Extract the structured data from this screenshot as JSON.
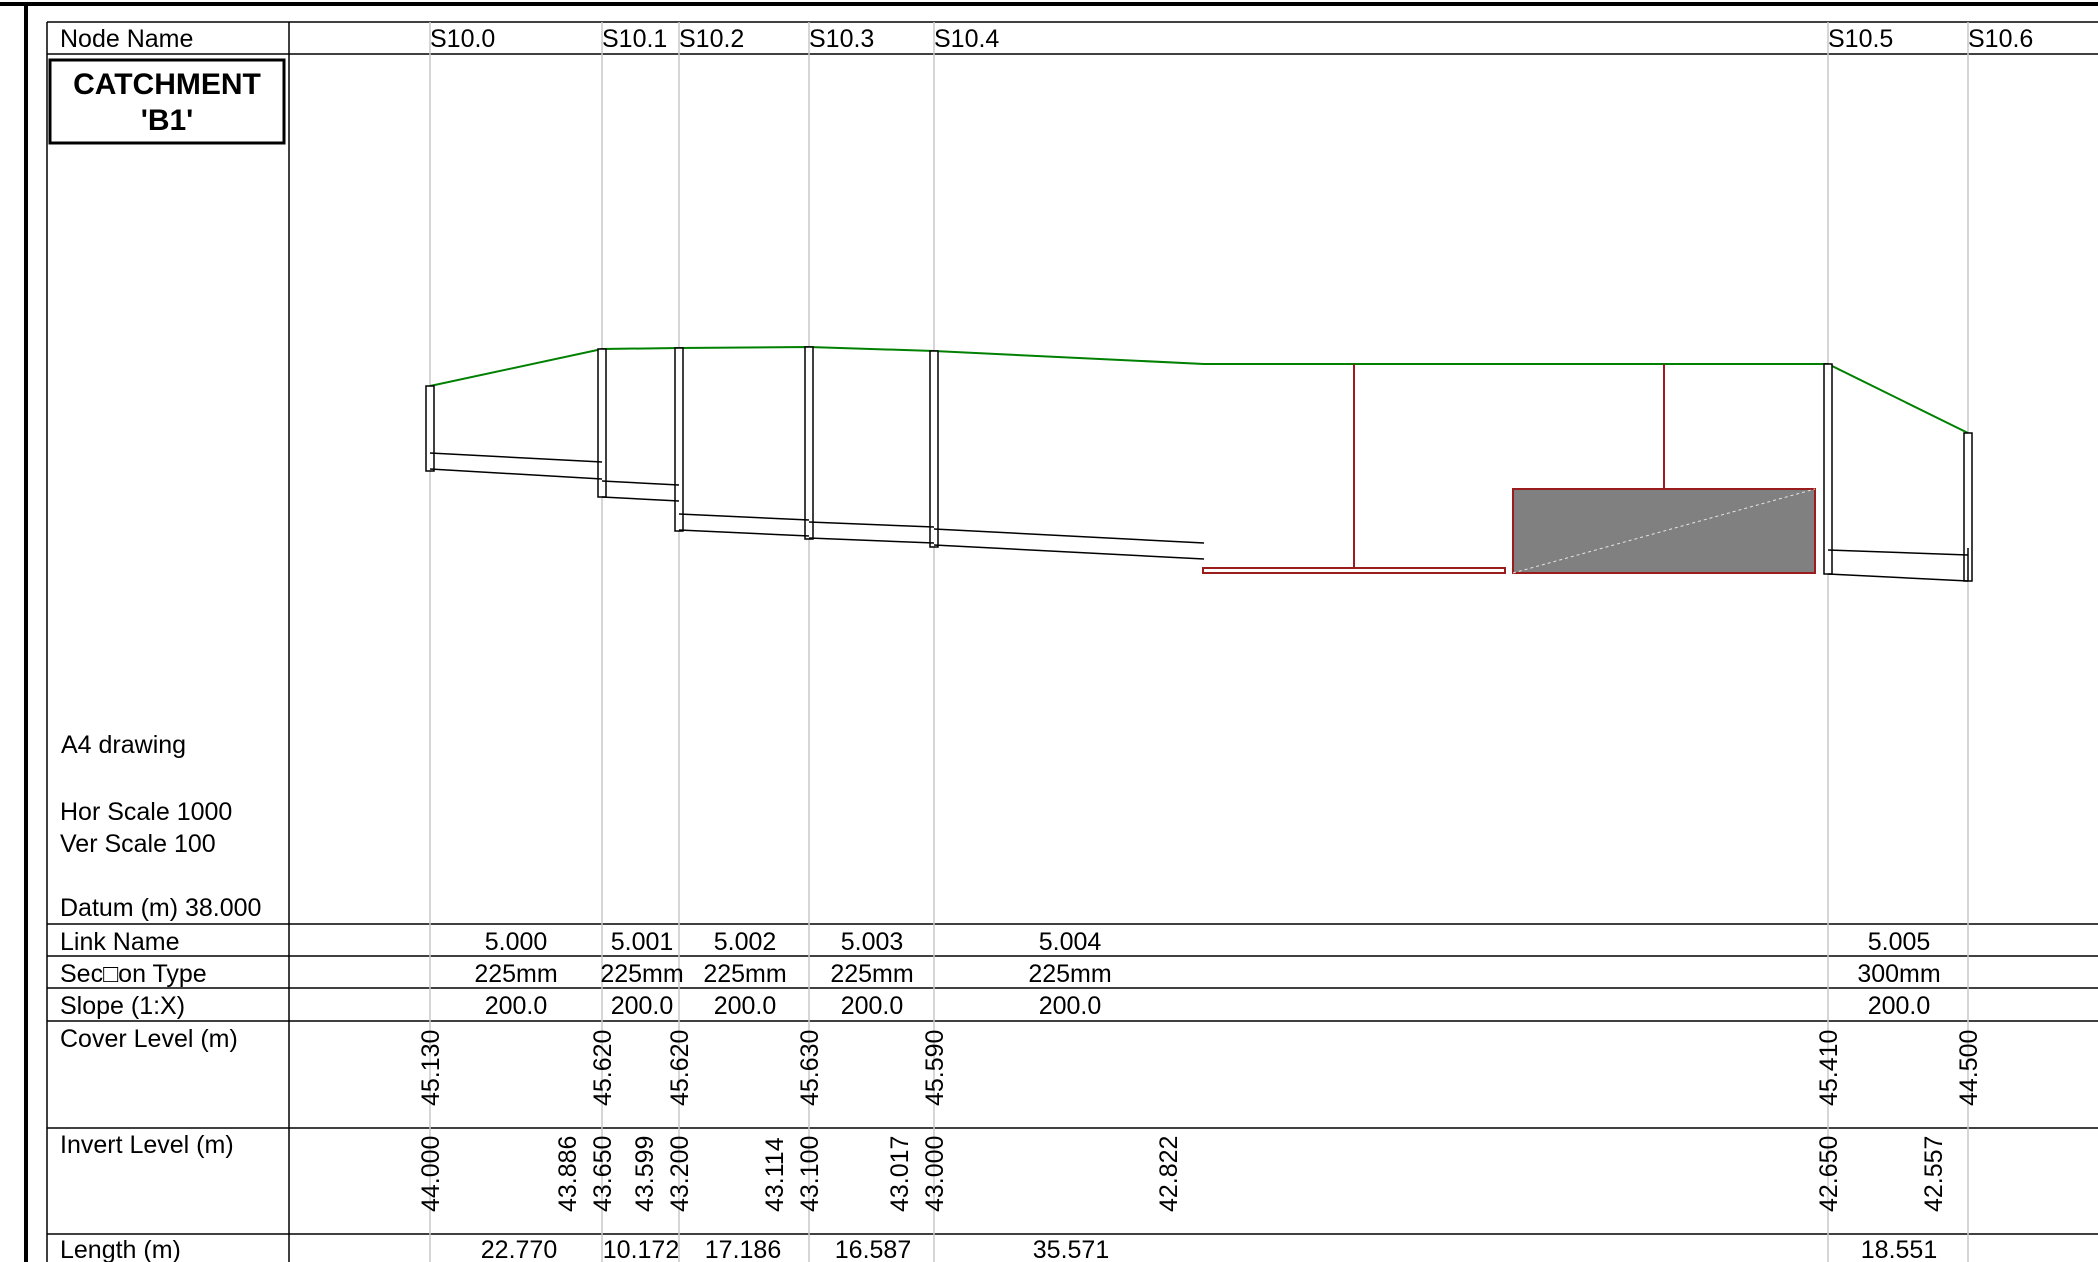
{
  "header_label": "Node Name",
  "title_box": {
    "line1": "CATCHMENT",
    "line2": "'B1'"
  },
  "drawing_info": {
    "paper": "A4 drawing",
    "hor_scale": "Hor Scale 1000",
    "ver_scale": "Ver Scale 100",
    "datum": "Datum (m) 38.000"
  },
  "nodes": [
    "S10.0",
    "S10.1",
    "S10.2",
    "S10.3",
    "S10.4",
    "S10.5",
    "S10.6"
  ],
  "row_labels": {
    "link_name": "Link Name",
    "section_type": "Sec□on Type",
    "slope": "Slope (1:X)",
    "cover_level": "Cover Level (m)",
    "invert_level": "Invert Level (m)",
    "length": "Length (m)"
  },
  "links": [
    {
      "name": "5.000",
      "section": "225mm",
      "slope": "200.0",
      "length": "22.770"
    },
    {
      "name": "5.001",
      "section": "225mm",
      "slope": "200.0",
      "length": "10.172"
    },
    {
      "name": "5.002",
      "section": "225mm",
      "slope": "200.0",
      "length": "17.186"
    },
    {
      "name": "5.003",
      "section": "225mm",
      "slope": "200.0",
      "length": "16.587"
    },
    {
      "name": "5.004",
      "section": "225mm",
      "slope": "200.0",
      "length": "35.571"
    },
    {
      "name": "5.005",
      "section": "300mm",
      "slope": "200.0",
      "length": "18.551"
    }
  ],
  "cover_levels": [
    "45.130",
    "45.620",
    "45.620",
    "45.630",
    "45.590",
    "45.410",
    "44.500"
  ],
  "invert_levels": [
    "44.000",
    "43.886",
    "43.650",
    "43.599",
    "43.200",
    "43.114",
    "43.100",
    "43.017",
    "43.000",
    "42.822",
    "42.650",
    "42.557"
  ],
  "colors": {
    "ground": "#008000",
    "storage": "#9b1c1c",
    "tank_fill": "#808080",
    "grid": "#c8c8c8"
  }
}
